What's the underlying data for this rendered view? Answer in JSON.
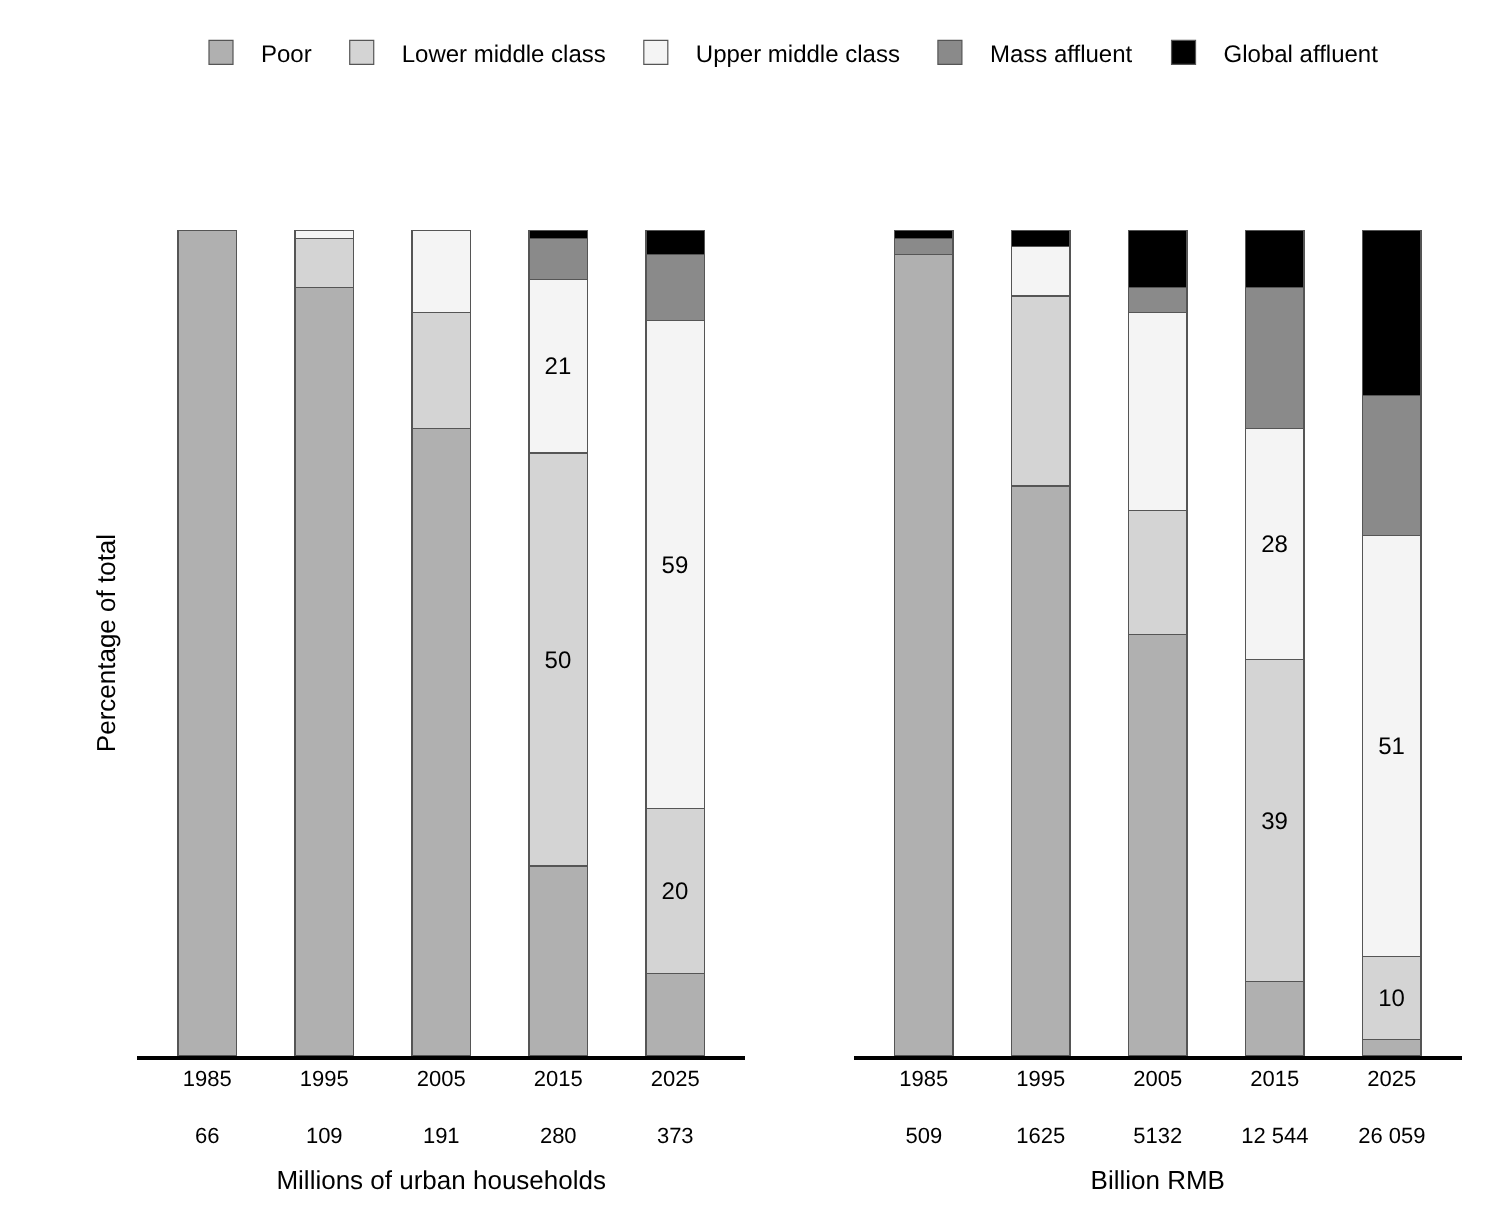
{
  "chart_data": [
    {
      "type": "bar",
      "stacked": true,
      "ylabel": "Percentage of total",
      "xlabel": "Millions of urban households",
      "categories": [
        "1985\n66",
        "1995\n109",
        "2005\n191",
        "2015\n280",
        "2025\n373"
      ],
      "series": [
        {
          "name": "Poor",
          "color": "#b0b0b0",
          "values": [
            100,
            93,
            76,
            23,
            10
          ],
          "value_labels": [
            null,
            null,
            null,
            null,
            null
          ]
        },
        {
          "name": "Lower middle class",
          "color": "#d4d4d4",
          "values": [
            null,
            6,
            14,
            50,
            20
          ],
          "value_labels": [
            null,
            null,
            null,
            "50",
            "20"
          ]
        },
        {
          "name": "Upper middle class",
          "color": "#f4f4f4",
          "values": [
            null,
            1,
            10,
            21,
            59
          ],
          "value_labels": [
            null,
            null,
            null,
            "21",
            "59"
          ]
        },
        {
          "name": "Mass affluent",
          "color": "#8a8a8a",
          "values": [
            null,
            null,
            null,
            5,
            8
          ],
          "value_labels": [
            null,
            null,
            null,
            null,
            null
          ]
        },
        {
          "name": "Global affluent",
          "color": "#000000",
          "values": [
            null,
            null,
            null,
            1,
            3
          ],
          "value_labels": [
            null,
            null,
            null,
            null,
            null
          ]
        }
      ],
      "legend": "top",
      "tick_labels": "x"
    },
    {
      "type": "bar",
      "stacked": true,
      "xlabel": "Billion RMB",
      "categories": [
        "1985\n509",
        "1995\n1625",
        "2005\n5132",
        "2015\n12 544",
        "2025\n26 059"
      ],
      "series": [
        {
          "color": "#b0b0b0",
          "values": [
            97,
            69,
            51,
            9,
            2
          ],
          "value_labels": [
            null,
            null,
            null,
            null,
            null
          ]
        },
        {
          "color": "#d4d4d4",
          "values": [
            null,
            23,
            15,
            39,
            10
          ],
          "value_labels": [
            null,
            null,
            null,
            "39",
            "10"
          ]
        },
        {
          "color": "#f4f4f4",
          "values": [
            null,
            6,
            24,
            28,
            51
          ],
          "value_labels": [
            null,
            null,
            null,
            "28",
            "51"
          ]
        },
        {
          "color": "#8a8a8a",
          "values": [
            2,
            null,
            3,
            17,
            17
          ],
          "value_labels": [
            null,
            null,
            null,
            null,
            null
          ]
        },
        {
          "color": "#000000",
          "values": [
            1,
            2,
            7,
            7,
            20
          ],
          "value_labels": [
            null,
            null,
            null,
            null,
            null
          ]
        }
      ],
      "legend": false,
      "tick_labels": "x"
    }
  ]
}
